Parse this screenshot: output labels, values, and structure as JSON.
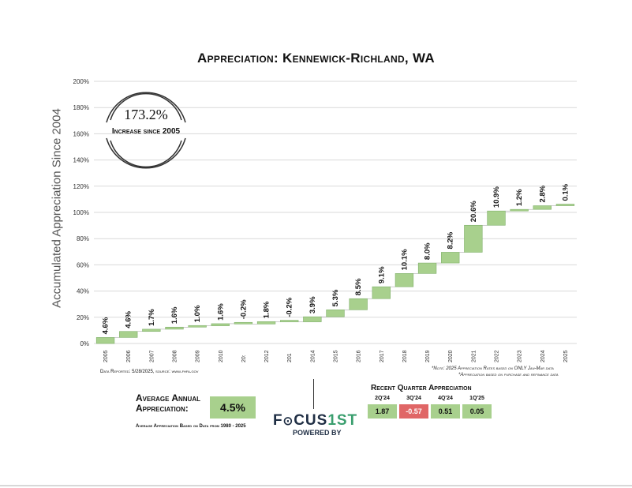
{
  "title": "Appreciation: Kennewick-Richland, WA",
  "chart_data": {
    "type": "waterfall",
    "title": "Appreciation: Kennewick-Richland, WA",
    "ylabel": "Accumulated Appreciation Since 2004",
    "ylim": [
      0,
      200
    ],
    "yticks": [
      "0%",
      "20%",
      "40%",
      "60%",
      "80%",
      "100%",
      "120%",
      "140%",
      "160%",
      "180%",
      "200%"
    ],
    "categories": [
      "2005",
      "2006",
      "2007",
      "2008",
      "2009",
      "2010",
      "20:",
      "2012",
      "201",
      "2014",
      "2015",
      "2016",
      "2017",
      "2018",
      "2019",
      "2020",
      "2021",
      "2022",
      "2023",
      "2024",
      "2025"
    ],
    "values": [
      4.6,
      4.6,
      1.7,
      1.6,
      1.0,
      1.6,
      -0.2,
      1.8,
      -0.2,
      3.9,
      5.3,
      8.5,
      9.1,
      10.1,
      8.0,
      8.2,
      20.6,
      10.9,
      1.2,
      2.8,
      0.1
    ],
    "labels": [
      "4.6%",
      "4.6%",
      "1.7%",
      "1.6%",
      "1.0%",
      "1.6%",
      "-0.2%",
      "1.8%",
      "-0.2%",
      "3.9%",
      "5.3%",
      "8.5%",
      "9.1%",
      "10.1%",
      "8.0%",
      "8.2%",
      "20.6%",
      "10.9%",
      "1.2%",
      "2.8%",
      "0.1%"
    ],
    "grid": true
  },
  "callout": {
    "value": "173.2%",
    "label": "Increase since 2005"
  },
  "source": "Data Reported: 5/28/2025, source: www.fhfa.gov",
  "notes": [
    "*Note: 2025 Appreciation Rates based on ONLY Jan-Mar data",
    "*Appreciation based on purchase and refinance data"
  ],
  "average": {
    "label": "Average Annual Appreciation:",
    "value": "4.5%",
    "sub": "Average Appreciation Based on Data from 1980 - 2025"
  },
  "logo": {
    "text_a": "F",
    "text_b": "CUS",
    "text_c": "1ST",
    "powered": "POWERED BY"
  },
  "recent": {
    "title": "Recent Quarter Appreciation",
    "quarters": [
      {
        "label": "2Q'24",
        "value": "1.87",
        "color": "#a8d08d"
      },
      {
        "label": "3Q'24",
        "value": "-0.57",
        "color": "#e06666"
      },
      {
        "label": "4Q'24",
        "value": "0.51",
        "color": "#a8d08d"
      },
      {
        "label": "1Q'25",
        "value": "0.05",
        "color": "#a8d08d"
      }
    ]
  },
  "colors": {
    "bar": "#a8d08d",
    "bar_edge": "#7fb069",
    "grid": "#d9d9d9",
    "negative": "#e06666"
  }
}
